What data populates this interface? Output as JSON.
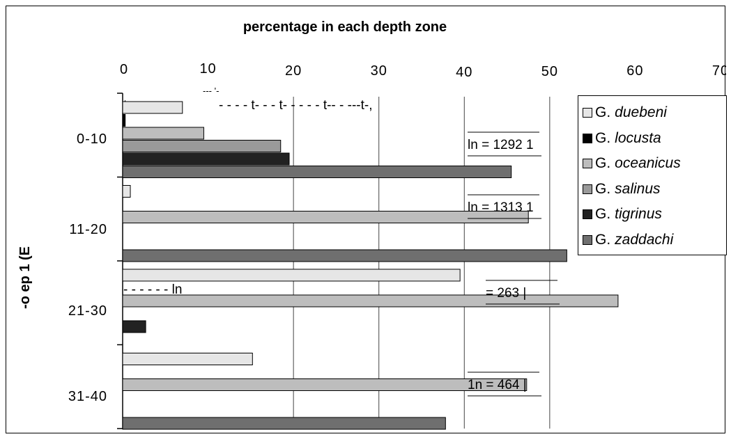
{
  "chart_data": {
    "type": "bar",
    "orientation": "horizontal",
    "title": "percentage in each depth zone",
    "xlim": [
      0,
      70
    ],
    "x_ticks": [
      "0",
      "10",
      "20",
      "30",
      "40",
      "50",
      "60",
      "70"
    ],
    "ylabel": "-o ep 1 (E",
    "categories": [
      "0-10",
      "11-20",
      "21-30",
      "31-40"
    ],
    "series": [
      {
        "name": "G. duebeni",
        "genus": "G.",
        "species": "duebeni",
        "color": "#e6e6e6",
        "values": [
          7,
          0.9,
          39.5,
          15.2
        ]
      },
      {
        "name": "G. locusta",
        "genus": "G.",
        "species": "locusta",
        "color": "#000000",
        "values": [
          0.3,
          0,
          0,
          0
        ]
      },
      {
        "name": "G. oceanicus",
        "genus": "G.",
        "species": "oceanicus",
        "color": "#bdbdbd",
        "values": [
          9.5,
          47.5,
          58,
          47.3
        ]
      },
      {
        "name": "G. salinus",
        "genus": "G.",
        "species": "salinus",
        "color": "#9a9a9a",
        "values": [
          18.5,
          0,
          0,
          0
        ]
      },
      {
        "name": "G. tigrinus",
        "genus": "G.",
        "species": "tigrinus",
        "color": "#222222",
        "values": [
          19.5,
          0,
          2.7,
          0
        ]
      },
      {
        "name": "G. zaddachi",
        "genus": "G.",
        "species": "zaddachi",
        "color": "#6f6f6f",
        "values": [
          45.5,
          52,
          0,
          37.8
        ]
      }
    ],
    "n_labels": [
      "ln = 1292 1",
      "ln = 1313 1",
      "= 263 |",
      "1n = 464 |"
    ],
    "scan_artifacts": [
      "t====",
      "--- '-",
      "- - - - t- - - t- - - - - t-- - ---t-,",
      "- - - - - - ln"
    ],
    "grid": true,
    "legend_position": "right"
  }
}
